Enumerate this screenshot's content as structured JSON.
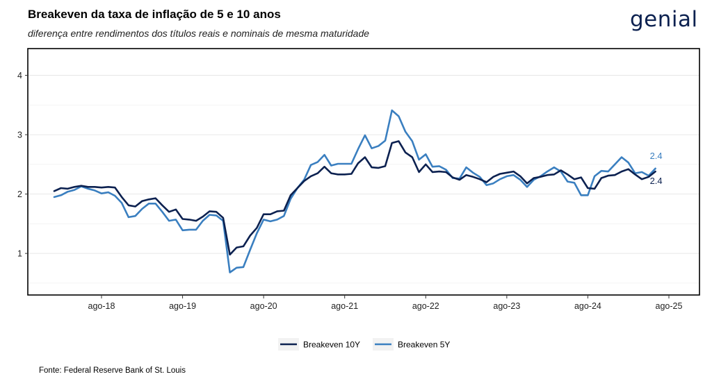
{
  "title": "Breakeven da taxa de inflação de 5 e 10 anos",
  "subtitle": "diferença entre rendimentos dos títulos reais e nominais de mesma maturidade",
  "logo_text": "genial",
  "source": "Fonte: Federal Reserve Bank of St. Louis",
  "chart_data": {
    "type": "line",
    "x_tick_labels": [
      "ago-18",
      "ago-19",
      "ago-20",
      "ago-21",
      "ago-22",
      "ago-23",
      "ago-24",
      "ago-25"
    ],
    "x_tick_dates": [
      "2018-08",
      "2019-08",
      "2020-08",
      "2021-08",
      "2022-08",
      "2023-08",
      "2024-08",
      "2025-08"
    ],
    "x": [
      "2018-01",
      "2018-02",
      "2018-03",
      "2018-04",
      "2018-05",
      "2018-06",
      "2018-07",
      "2018-08",
      "2018-09",
      "2018-10",
      "2018-11",
      "2018-12",
      "2019-01",
      "2019-02",
      "2019-03",
      "2019-04",
      "2019-05",
      "2019-06",
      "2019-07",
      "2019-08",
      "2019-09",
      "2019-10",
      "2019-11",
      "2019-12",
      "2020-01",
      "2020-02",
      "2020-03",
      "2020-04",
      "2020-05",
      "2020-06",
      "2020-07",
      "2020-08",
      "2020-09",
      "2020-10",
      "2020-11",
      "2020-12",
      "2021-01",
      "2021-02",
      "2021-03",
      "2021-04",
      "2021-05",
      "2021-06",
      "2021-07",
      "2021-08",
      "2021-09",
      "2021-10",
      "2021-11",
      "2021-12",
      "2022-01",
      "2022-02",
      "2022-03",
      "2022-04",
      "2022-05",
      "2022-06",
      "2022-07",
      "2022-08",
      "2022-09",
      "2022-10",
      "2022-11",
      "2022-12",
      "2023-01",
      "2023-02",
      "2023-03",
      "2023-04",
      "2023-05",
      "2023-06",
      "2023-07",
      "2023-08",
      "2023-09",
      "2023-10",
      "2023-11",
      "2023-12",
      "2024-01",
      "2024-02",
      "2024-03",
      "2024-04",
      "2024-05",
      "2024-06",
      "2024-07",
      "2024-08",
      "2024-09",
      "2024-10",
      "2024-11",
      "2024-12",
      "2025-01",
      "2025-02",
      "2025-03",
      "2025-04",
      "2025-05",
      "2025-06"
    ],
    "series": [
      {
        "name": "Breakeven 10Y",
        "color": "#0c2150",
        "end_label": "2.4",
        "values": [
          2.05,
          2.1,
          2.09,
          2.12,
          2.14,
          2.12,
          2.12,
          2.11,
          2.12,
          2.11,
          1.95,
          1.81,
          1.79,
          1.88,
          1.91,
          1.93,
          1.81,
          1.7,
          1.74,
          1.58,
          1.57,
          1.55,
          1.62,
          1.71,
          1.7,
          1.6,
          0.98,
          1.1,
          1.12,
          1.3,
          1.43,
          1.66,
          1.66,
          1.71,
          1.72,
          1.98,
          2.1,
          2.22,
          2.3,
          2.35,
          2.46,
          2.35,
          2.33,
          2.33,
          2.34,
          2.52,
          2.62,
          2.45,
          2.44,
          2.47,
          2.86,
          2.89,
          2.7,
          2.62,
          2.37,
          2.5,
          2.37,
          2.38,
          2.37,
          2.28,
          2.24,
          2.32,
          2.29,
          2.25,
          2.2,
          2.29,
          2.34,
          2.36,
          2.38,
          2.3,
          2.18,
          2.27,
          2.29,
          2.32,
          2.33,
          2.4,
          2.33,
          2.25,
          2.28,
          2.1,
          2.09,
          2.27,
          2.31,
          2.32,
          2.38,
          2.42,
          2.33,
          2.25,
          2.29,
          2.38
        ]
      },
      {
        "name": "Breakeven 5Y",
        "color": "#3a7fc0",
        "end_label": "2.4",
        "values": [
          1.95,
          1.98,
          2.04,
          2.07,
          2.13,
          2.09,
          2.06,
          2.01,
          2.03,
          1.97,
          1.85,
          1.61,
          1.63,
          1.75,
          1.84,
          1.84,
          1.7,
          1.55,
          1.57,
          1.39,
          1.4,
          1.4,
          1.55,
          1.65,
          1.64,
          1.55,
          0.68,
          0.76,
          0.77,
          1.06,
          1.34,
          1.57,
          1.54,
          1.57,
          1.63,
          1.92,
          2.1,
          2.24,
          2.49,
          2.54,
          2.66,
          2.48,
          2.51,
          2.51,
          2.51,
          2.76,
          2.99,
          2.77,
          2.81,
          2.9,
          3.41,
          3.31,
          3.05,
          2.89,
          2.58,
          2.67,
          2.46,
          2.47,
          2.41,
          2.27,
          2.26,
          2.45,
          2.36,
          2.29,
          2.15,
          2.18,
          2.25,
          2.3,
          2.32,
          2.24,
          2.12,
          2.24,
          2.3,
          2.38,
          2.45,
          2.38,
          2.21,
          2.19,
          1.98,
          1.98,
          2.3,
          2.39,
          2.38,
          2.5,
          2.62,
          2.53,
          2.35,
          2.37,
          2.31,
          2.43
        ]
      }
    ],
    "ylim": [
      0.3,
      4.45
    ],
    "y_ticks": [
      1,
      2,
      3,
      4
    ],
    "grid": true,
    "legend_position": "bottom"
  }
}
